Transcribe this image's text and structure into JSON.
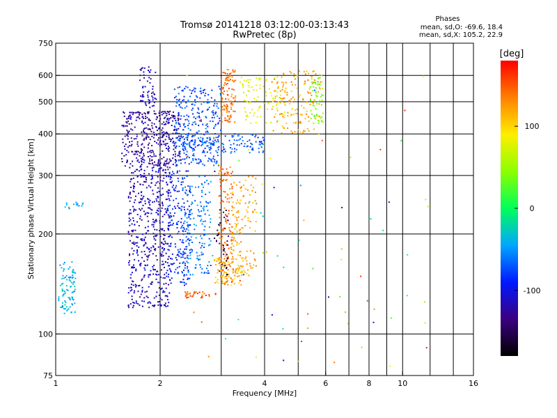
{
  "chart_data": {
    "type": "scatter",
    "title": "Tromsø 20141218 03:12:00-03:13:43",
    "subtitle": "RwPretec (8p)",
    "xlabel": "Frequency [MHz]",
    "ylabel": "Stationary phase Virtual Height [km]",
    "x_scale": "log",
    "y_scale": "log",
    "xlim": [
      1,
      16
    ],
    "ylim": [
      75,
      750
    ],
    "x_ticks": [
      1,
      2,
      4,
      6,
      8,
      10,
      16
    ],
    "y_ticks": [
      75,
      100,
      200,
      300,
      400,
      500,
      600,
      750
    ],
    "x_grid": [
      1,
      2,
      3,
      4,
      5,
      6,
      7,
      8,
      9,
      10,
      12,
      14,
      16
    ],
    "y_grid": [
      100,
      200,
      300,
      400,
      500,
      600
    ],
    "grid": true,
    "stats": {
      "title": "Phases",
      "line_o": "mean, sd,O: -69.6, 18.4",
      "line_x": "mean, sd,X: 105.2, 22.9"
    },
    "colorbar": {
      "label": "[deg]",
      "min": -180,
      "max": 180,
      "ticks": [
        100,
        0,
        -100
      ],
      "tick_labels": [
        "100",
        "0",
        "-100"
      ]
    },
    "clusters": [
      {
        "x_range": [
          1.02,
          1.14
        ],
        "y_range": [
          115,
          165
        ],
        "phase": -40,
        "count": 90,
        "dist": "uniform"
      },
      {
        "x_range": [
          1.06,
          1.2
        ],
        "y_range": [
          238,
          250
        ],
        "phase": -40,
        "count": 14,
        "dist": "uniform"
      },
      {
        "x_range": [
          1.62,
          2.15
        ],
        "y_range": [
          120,
          330
        ],
        "phase": -115,
        "count": 520,
        "dist": "uniform"
      },
      {
        "x_range": [
          1.55,
          2.3
        ],
        "y_range": [
          320,
          470
        ],
        "phase": -125,
        "count": 380,
        "dist": "uniform"
      },
      {
        "x_range": [
          1.75,
          1.95
        ],
        "y_range": [
          480,
          640
        ],
        "phase": -115,
        "count": 60,
        "dist": "uniform"
      },
      {
        "x_range": [
          2.1,
          2.45
        ],
        "y_range": [
          140,
          310
        ],
        "phase": -90,
        "count": 180,
        "dist": "uniform"
      },
      {
        "x_range": [
          2.3,
          2.8
        ],
        "y_range": [
          150,
          300
        ],
        "phase": -60,
        "count": 170,
        "dist": "uniform"
      },
      {
        "x_range": [
          2.2,
          3.0
        ],
        "y_range": [
          320,
          560
        ],
        "phase": -75,
        "count": 280,
        "dist": "uniform"
      },
      {
        "x_range": [
          2.3,
          4.0
        ],
        "y_range": [
          350,
          400
        ],
        "phase": -70,
        "count": 140,
        "dist": "uniform"
      },
      {
        "x_range": [
          2.35,
          2.9
        ],
        "y_range": [
          128,
          134
        ],
        "phase": 150,
        "count": 35,
        "dist": "uniform"
      },
      {
        "x_range": [
          2.95,
          3.25
        ],
        "y_range": [
          140,
          320
        ],
        "phase": 140,
        "count": 150,
        "dist": "uniform"
      },
      {
        "x_range": [
          2.85,
          3.15
        ],
        "y_range": [
          150,
          240
        ],
        "phase": -150,
        "count": 35,
        "dist": "uniform"
      },
      {
        "x_range": [
          2.85,
          3.5
        ],
        "y_range": [
          140,
          170
        ],
        "phase": 110,
        "count": 80,
        "dist": "uniform"
      },
      {
        "x_range": [
          3.2,
          3.8
        ],
        "y_range": [
          150,
          300
        ],
        "phase": 120,
        "count": 130,
        "dist": "uniform"
      },
      {
        "x_range": [
          3.0,
          3.3
        ],
        "y_range": [
          430,
          630
        ],
        "phase": 140,
        "count": 110,
        "dist": "uniform"
      },
      {
        "x_range": [
          3.4,
          4.6
        ],
        "y_range": [
          430,
          600
        ],
        "phase": 80,
        "count": 90,
        "dist": "uniform"
      },
      {
        "x_range": [
          4.2,
          5.8
        ],
        "y_range": [
          400,
          620
        ],
        "phase": 120,
        "count": 150,
        "dist": "uniform"
      },
      {
        "x_range": [
          5.4,
          5.9
        ],
        "y_range": [
          430,
          600
        ],
        "phase": 40,
        "count": 60,
        "dist": "uniform"
      },
      {
        "x_range": [
          2.3,
          12
        ],
        "y_range": [
          80,
          620
        ],
        "phase": 0,
        "count": 80,
        "dist": "mixed"
      }
    ]
  }
}
